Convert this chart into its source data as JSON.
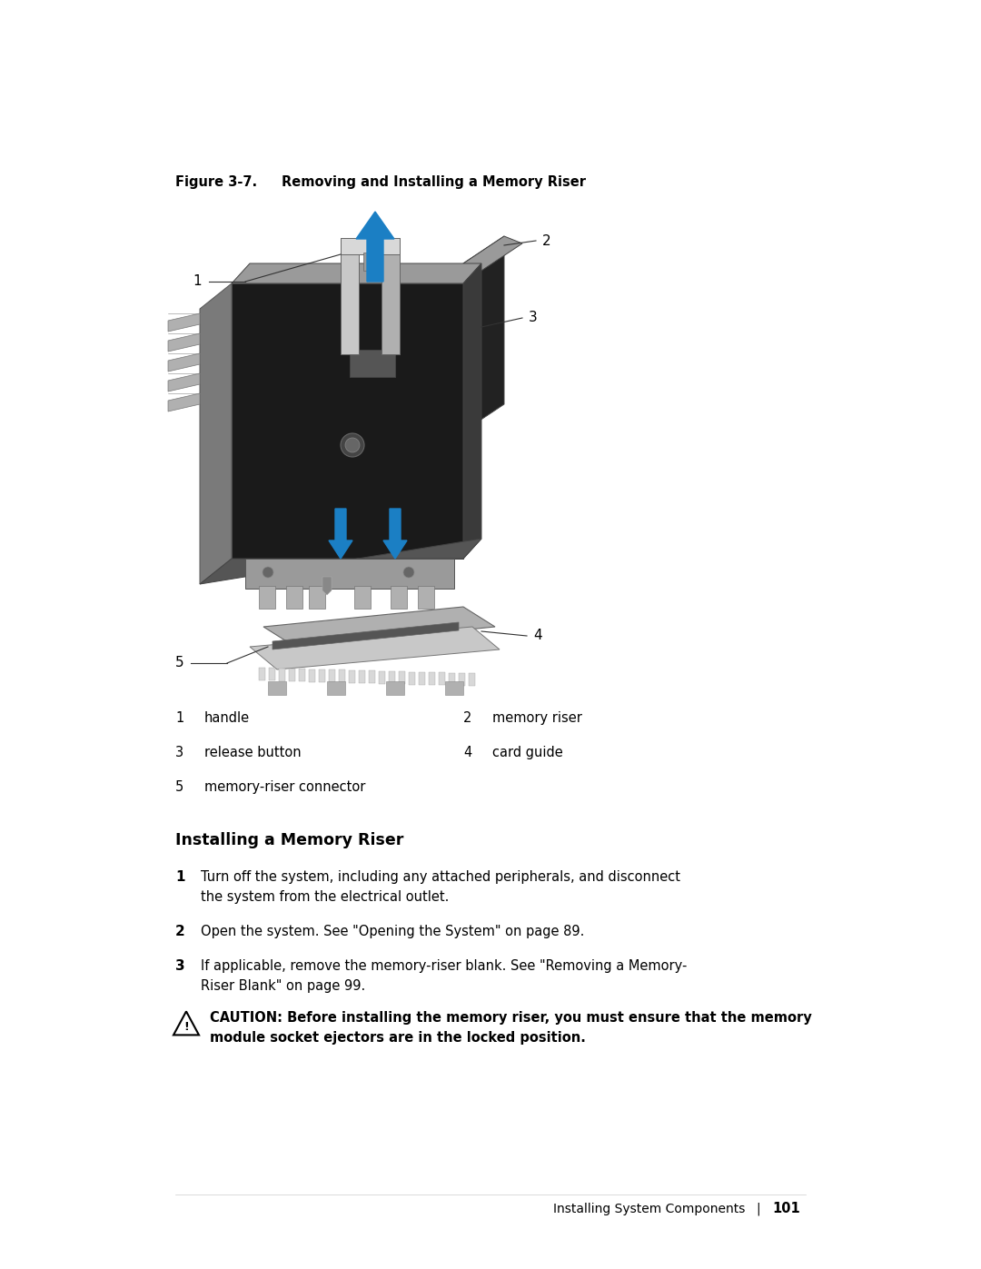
{
  "figure_label": "Figure 3-7.",
  "figure_title": "Removing and Installing a Memory Riser",
  "labels": {
    "1": "handle",
    "2": "memory riser",
    "3": "release button",
    "4": "card guide",
    "5": "memory-riser connector"
  },
  "section_title": "Installing a Memory Riser",
  "step1": "Turn off the system, including any attached peripherals, and disconnect the system from the electrical outlet.",
  "step2": "Open the system. See \"Opening the System\" on page 89.",
  "step3": "If applicable, remove the memory-riser blank. See \"Removing a Memory-Riser Blank\" on page 99.",
  "caution_bold": "CAUTION: Before installing the memory riser, you must ensure that the memory module socket ejectors are in the locked position.",
  "footer_text": "Installing System Components",
  "page_number": "101",
  "bg_color": "#ffffff",
  "text_color": "#000000",
  "arrow_color": "#1b7fc4",
  "fig_width": 10.8,
  "fig_height": 13.97
}
